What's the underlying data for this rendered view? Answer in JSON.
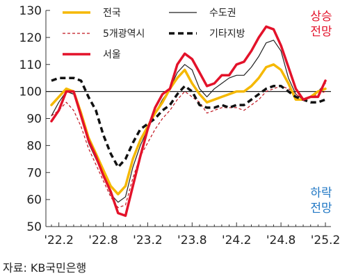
{
  "source": "자료: KB국민은행",
  "annotations": {
    "up_line1": "상승",
    "up_line2": "전망",
    "down_line1": "하락",
    "down_line2": "전망",
    "up_color": "#e3122a",
    "down_color": "#1f77c4"
  },
  "chart_data": {
    "type": "line",
    "title": "",
    "xlabel": "",
    "ylabel": "",
    "ylim": [
      50,
      130
    ],
    "yticks": [
      50,
      60,
      70,
      80,
      90,
      100,
      110,
      120,
      130
    ],
    "reference_line": 100,
    "grid": false,
    "legend_placement": "top",
    "x_tick_labels": [
      "'22.2",
      "'22.8",
      "'23.2",
      "'23.8",
      "'24.2",
      "'24.8",
      "'25.2"
    ],
    "x": [
      "2022-01",
      "2022-02",
      "2022-03",
      "2022-04",
      "2022-05",
      "2022-06",
      "2022-07",
      "2022-08",
      "2022-09",
      "2022-10",
      "2022-11",
      "2022-12",
      "2023-01",
      "2023-02",
      "2023-03",
      "2023-04",
      "2023-05",
      "2023-06",
      "2023-07",
      "2023-08",
      "2023-09",
      "2023-10",
      "2023-11",
      "2023-12",
      "2024-01",
      "2024-02",
      "2024-03",
      "2024-04",
      "2024-05",
      "2024-06",
      "2024-07",
      "2024-08",
      "2024-09",
      "2024-10",
      "2024-11",
      "2024-12",
      "2025-01",
      "2025-02"
    ],
    "series": [
      {
        "name": "전국",
        "color": "#f5b800",
        "dash": "solid",
        "width": 3.5,
        "values": [
          95,
          98,
          101,
          100,
          92,
          83,
          77,
          71,
          65,
          62,
          65,
          75,
          82,
          87,
          92,
          96,
          101,
          105,
          108,
          103,
          99,
          96,
          97,
          98,
          99,
          100,
          100,
          102,
          105,
          109,
          110,
          108,
          103,
          97,
          97,
          98,
          100,
          101
        ]
      },
      {
        "name": "수도권",
        "color": "#222222",
        "dash": "solid",
        "width": 1.2,
        "values": [
          91,
          96,
          100,
          99,
          91,
          81,
          75,
          69,
          62,
          59,
          61,
          72,
          80,
          86,
          92,
          97,
          101,
          107,
          110,
          108,
          101,
          98,
          101,
          103,
          105,
          106,
          106,
          109,
          113,
          118,
          119,
          115,
          105,
          99,
          97,
          98,
          100,
          103
        ]
      },
      {
        "name": "5개광역시",
        "color": "#c0141f",
        "dash": "dashed",
        "width": 1.2,
        "values": [
          91,
          93,
          96,
          93,
          87,
          79,
          73,
          67,
          61,
          57,
          58,
          68,
          76,
          81,
          86,
          90,
          93,
          97,
          100,
          98,
          96,
          92,
          93,
          94,
          94,
          94,
          93,
          95,
          97,
          100,
          101,
          102,
          101,
          99,
          97,
          98,
          99,
          100
        ]
      },
      {
        "name": "기타지방",
        "color": "#111111",
        "dash": "dashed",
        "width": 3.5,
        "values": [
          104,
          105,
          105,
          105,
          104,
          98,
          93,
          84,
          77,
          72,
          75,
          81,
          86,
          88,
          90,
          93,
          95,
          99,
          102,
          100,
          95,
          94,
          94,
          95,
          94,
          95,
          95,
          97,
          99,
          101,
          102,
          102,
          100,
          98,
          97,
          96,
          96,
          97
        ]
      },
      {
        "name": "서울",
        "color": "#e3122a",
        "dash": "solid",
        "width": 3.5,
        "values": [
          89,
          93,
          100,
          100,
          91,
          82,
          76,
          69,
          63,
          55,
          54,
          65,
          76,
          86,
          94,
          99,
          101,
          110,
          114,
          112,
          107,
          102,
          103,
          106,
          106,
          110,
          111,
          115,
          120,
          124,
          123,
          117,
          109,
          101,
          97,
          98,
          98,
          104
        ]
      }
    ]
  }
}
